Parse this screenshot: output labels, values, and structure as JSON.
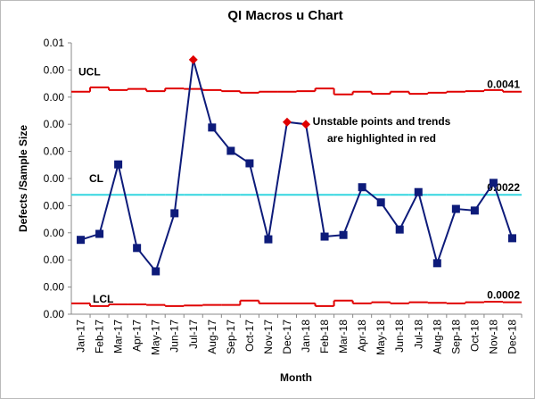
{
  "chart_data": {
    "type": "control",
    "title": "QI Macros u Chart",
    "x_label": "Month",
    "y_label": "Defects /Sample Size",
    "annotation": [
      "Unstable points and trends",
      "are highlighted in red"
    ],
    "categories": [
      "Jan-17",
      "Feb-17",
      "Mar-17",
      "Apr-17",
      "May-17",
      "Jun-17",
      "Jul-17",
      "Aug-17",
      "Sep-17",
      "Oct-17",
      "Nov-17",
      "Dec-17",
      "Jan-18",
      "Feb-18",
      "Mar-18",
      "Apr-18",
      "May-18",
      "Jun-18",
      "Jul-18",
      "Aug-18",
      "Sep-18",
      "Oct-18",
      "Nov-18",
      "Dec-18"
    ],
    "ylim": [
      0,
      0.005
    ],
    "yticks": [
      {
        "value": 0,
        "label": "0.00"
      },
      {
        "value": 0.0005,
        "label": "0.00"
      },
      {
        "value": 0.001,
        "label": "0.00"
      },
      {
        "value": 0.0015,
        "label": "0.00"
      },
      {
        "value": 0.002,
        "label": "0.00"
      },
      {
        "value": 0.0025,
        "label": "0.00"
      },
      {
        "value": 0.003,
        "label": "0.00"
      },
      {
        "value": 0.0035,
        "label": "0.00"
      },
      {
        "value": 0.004,
        "label": "0.00"
      },
      {
        "value": 0.0045,
        "label": "0.00"
      },
      {
        "value": 0.005,
        "label": "0.01"
      }
    ],
    "series": [
      {
        "color": "#0d1b7a",
        "values": [
          0.00137,
          0.00148,
          0.00276,
          0.00122,
          0.00079,
          0.00186,
          0.00469,
          0.00344,
          0.00301,
          0.00278,
          0.00138,
          0.00354,
          0.0035,
          0.00143,
          0.00146,
          0.00234,
          0.00206,
          0.00156,
          0.00225,
          0.00094,
          0.00194,
          0.00191,
          0.00242,
          0.0014
        ],
        "marker_colors": [
          "#0d1b7a",
          "#0d1b7a",
          "#0d1b7a",
          "#0d1b7a",
          "#0d1b7a",
          "#0d1b7a",
          "#e00000",
          "#0d1b7a",
          "#0d1b7a",
          "#0d1b7a",
          "#0d1b7a",
          "#e00000",
          "#e00000",
          "#0d1b7a",
          "#0d1b7a",
          "#0d1b7a",
          "#0d1b7a",
          "#0d1b7a",
          "#0d1b7a",
          "#0d1b7a",
          "#0d1b7a",
          "#0d1b7a",
          "#0d1b7a",
          "#0d1b7a"
        ]
      }
    ],
    "limits": [
      {
        "name": "UCL",
        "color": "#e00000",
        "values": [
          0.0041,
          0.00418,
          0.00413,
          0.00415,
          0.00411,
          0.00416,
          0.00415,
          0.00413,
          0.00411,
          0.00408,
          0.0041,
          0.0041,
          0.00411,
          0.00416,
          0.00405,
          0.0041,
          0.00406,
          0.0041,
          0.00406,
          0.00408,
          0.0041,
          0.00411,
          0.00413,
          0.0041
        ],
        "value_labels": [
          null,
          null,
          null,
          null,
          null,
          null,
          null,
          null,
          null,
          null,
          null,
          null,
          null,
          null,
          null,
          null,
          null,
          null,
          null,
          null,
          null,
          null,
          null,
          "0.0041"
        ]
      },
      {
        "name": "CL",
        "color": "#33d6e0",
        "values": [
          0.0022,
          0.0022,
          0.0022,
          0.0022,
          0.0022,
          0.0022,
          0.0022,
          0.0022,
          0.0022,
          0.0022,
          0.0022,
          0.0022,
          0.0022,
          0.0022,
          0.0022,
          0.0022,
          0.0022,
          0.0022,
          0.0022,
          0.0022,
          0.0022,
          0.0022,
          0.0022,
          0.0022
        ],
        "value_labels": [
          null,
          null,
          null,
          null,
          null,
          null,
          null,
          null,
          null,
          null,
          null,
          null,
          null,
          null,
          null,
          null,
          null,
          null,
          null,
          null,
          null,
          null,
          null,
          "0.0022"
        ]
      },
      {
        "name": "LCL",
        "color": "#e00000",
        "values": [
          0.0002,
          0.00015,
          0.00018,
          0.00018,
          0.00017,
          0.00015,
          0.00016,
          0.00017,
          0.00017,
          0.00025,
          0.0002,
          0.0002,
          0.0002,
          0.00015,
          0.00025,
          0.0002,
          0.00022,
          0.0002,
          0.00022,
          0.00021,
          0.0002,
          0.00022,
          0.00023,
          0.00022
        ],
        "value_labels": [
          null,
          null,
          null,
          null,
          null,
          null,
          null,
          null,
          null,
          null,
          null,
          null,
          null,
          null,
          null,
          null,
          null,
          null,
          null,
          null,
          null,
          null,
          null,
          "0.0002"
        ]
      }
    ]
  }
}
